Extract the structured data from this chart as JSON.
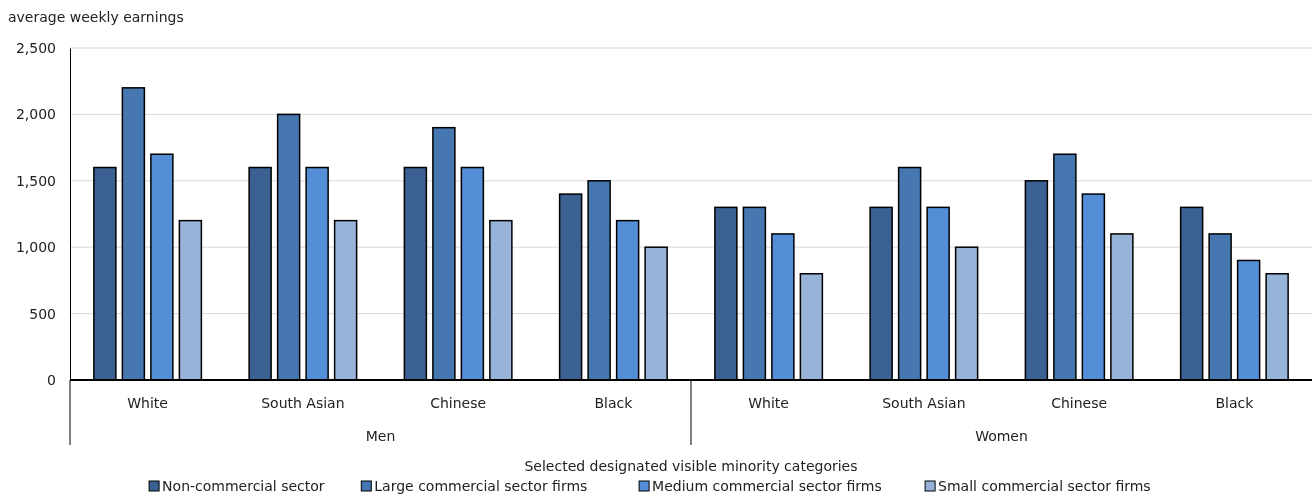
{
  "chart_data": {
    "type": "bar",
    "ylabel": "average weekly earnings",
    "xlabel": "Selected designated visible minority categories",
    "categories": [
      "White",
      "South Asian",
      "Chinese",
      "Black",
      "White",
      "South Asian",
      "Chinese",
      "Black"
    ],
    "annotations": [
      "Men",
      "Women"
    ],
    "series": [
      {
        "name": "Non-commercial sector",
        "color": "#3a6192",
        "values": [
          1600,
          1600,
          1600,
          1400,
          1300,
          1300,
          1500,
          1300
        ]
      },
      {
        "name": "Large commercial sector firms",
        "color": "#4677b0",
        "values": [
          2200,
          2000,
          1900,
          1500,
          1300,
          1600,
          1700,
          1100
        ]
      },
      {
        "name": "Medium commercial sector firms",
        "color": "#548ed6",
        "values": [
          1700,
          1600,
          1600,
          1200,
          1100,
          1300,
          1400,
          900
        ]
      },
      {
        "name": "Small commercial sector firms",
        "color": "#97b3d8",
        "values": [
          1200,
          1200,
          1200,
          1000,
          800,
          1000,
          1100,
          800
        ]
      }
    ],
    "ylim": [
      0,
      2500
    ],
    "yticks": [
      {
        "value": 0,
        "label": "0"
      },
      {
        "value": 500,
        "label": "500"
      },
      {
        "value": 1000,
        "label": "1,000"
      },
      {
        "value": 1500,
        "label": "1,500"
      },
      {
        "value": 2000,
        "label": "2,000"
      },
      {
        "value": 2500,
        "label": "2,500"
      }
    ],
    "grid": "y",
    "legend": "bottom"
  }
}
